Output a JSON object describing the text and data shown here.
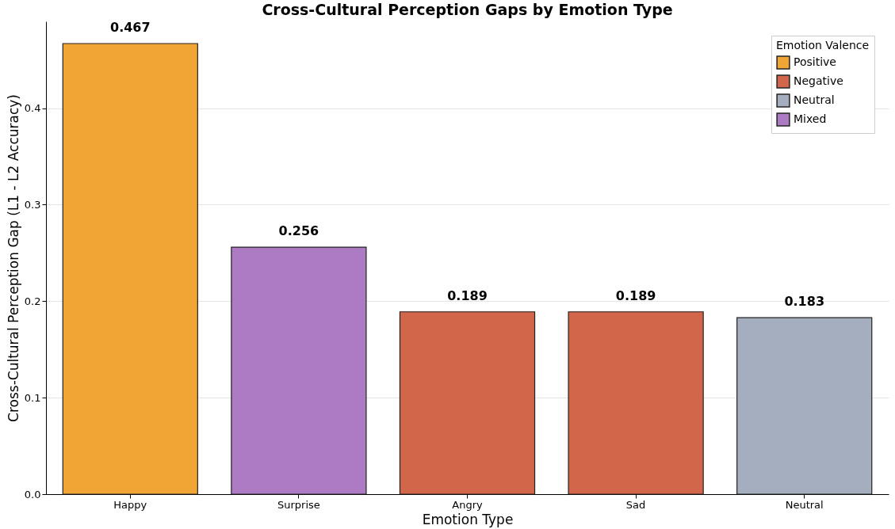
{
  "chart_data": {
    "type": "bar",
    "title": "Cross-Cultural Perception Gaps by Emotion Type",
    "xlabel": "Emotion Type",
    "ylabel": "Cross-Cultural Perception Gap (L1 - L2 Accuracy)",
    "legend_title": "Emotion Valence",
    "categories": [
      "Happy",
      "Surprise",
      "Angry",
      "Sad",
      "Neutral"
    ],
    "series": [
      {
        "name": "Positive",
        "color": "#f0a534",
        "values": [
          0.467,
          null,
          null,
          null,
          null
        ]
      },
      {
        "name": "Negative",
        "color": "#d2664b",
        "values": [
          null,
          null,
          0.189,
          0.189,
          null
        ]
      },
      {
        "name": "Neutral",
        "color": "#a5aebf",
        "values": [
          null,
          null,
          null,
          null,
          0.183
        ]
      },
      {
        "name": "Mixed",
        "color": "#ad7ac4",
        "values": [
          null,
          0.256,
          null,
          null,
          null
        ]
      }
    ],
    "ylim": [
      0,
      0.49
    ],
    "yticks": [
      {
        "value": 0,
        "label": "0.0"
      },
      0.1,
      0.2,
      0.3,
      0.4
    ],
    "grid": "y",
    "legend": "top right",
    "data_labels": true
  }
}
